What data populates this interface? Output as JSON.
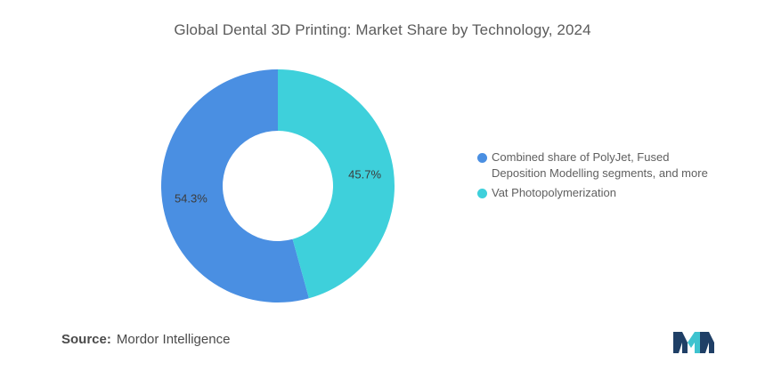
{
  "chart_data": {
    "type": "pie",
    "style": "donut",
    "title": "Global Dental 3D Printing: Market Share by Technology, 2024",
    "series": [
      {
        "name": "Combined share of PolyJet, Fused Deposition Modelling segments, and more",
        "value": 54.3,
        "label": "54.3%",
        "color": "#4a8fe2"
      },
      {
        "name": "Vat Photopolymerization",
        "value": 45.7,
        "label": "45.7%",
        "color": "#3ed0db"
      }
    ],
    "legend_placement": "right"
  },
  "legend": {
    "items": [
      {
        "label_line1": "Combined share of PolyJet, Fused",
        "label_line2": "Deposition Modelling segments, and more",
        "color": "#4a8fe2"
      },
      {
        "label_line1": "Vat Photopolymerization",
        "label_line2": "",
        "color": "#3ed0db"
      }
    ]
  },
  "source": {
    "label": "Source:",
    "value": "Mordor Intelligence"
  },
  "logo": {
    "icon": "mordor-intelligence-logo-icon",
    "color_dark": "#1f3f66",
    "color_light": "#3ec3cf"
  }
}
